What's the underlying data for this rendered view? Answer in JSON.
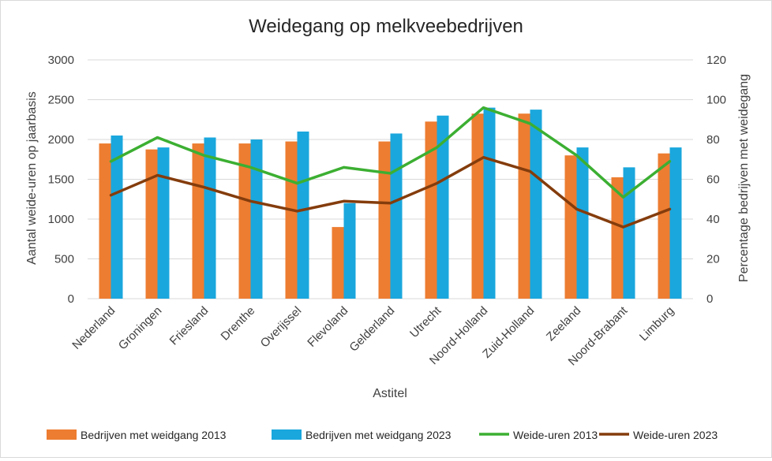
{
  "chart_data": {
    "type": "bar",
    "title": "Weidegang op melkveebedrijven",
    "xlabel": "Astitel",
    "ylabel": "Aantal weide-uren op jaarbasis",
    "y2label": "Percentage bedrijven met weidegang",
    "ylim": [
      0,
      3000
    ],
    "y2lim": [
      0,
      120
    ],
    "yticks": [
      "0",
      "500",
      "1000",
      "1500",
      "2000",
      "2500",
      "3000"
    ],
    "y2ticks": [
      "0",
      "20",
      "40",
      "60",
      "80",
      "100",
      "120"
    ],
    "grid": true,
    "legend_position": "bottom",
    "categories": [
      "Nederland",
      "Groningen",
      "Friesland",
      "Drenthe",
      "Overijssel",
      "Flevoland",
      "Gelderland",
      "Utrecht",
      "Noord-Holland",
      "Zuid-Holland",
      "Zeeland",
      "Noord-Brabant",
      "Limburg"
    ],
    "series": [
      {
        "name": "Bedrijven met weidgang  2013",
        "type": "bar",
        "axis": "left",
        "color": "#ED7D31",
        "values": [
          1950,
          1875,
          1950,
          1950,
          1975,
          900,
          1975,
          2225,
          2325,
          2325,
          1800,
          1525,
          1825
        ]
      },
      {
        "name": "Bedrijven met weidgang  2023",
        "type": "bar",
        "axis": "left",
        "color": "#1AA7DD",
        "values": [
          2050,
          1900,
          2025,
          2000,
          2100,
          1200,
          2075,
          2300,
          2400,
          2375,
          1900,
          1650,
          1900
        ]
      },
      {
        "name": "Weide-uren 2013",
        "type": "line",
        "axis": "right",
        "color": "#3CAF32",
        "values": [
          69,
          81,
          72,
          66,
          58,
          66,
          63,
          76,
          96,
          88,
          72,
          51,
          69
        ]
      },
      {
        "name": "Weide-uren 2023",
        "type": "line",
        "axis": "right",
        "color": "#843C0C",
        "values": [
          52,
          62,
          56,
          49,
          44,
          49,
          48,
          58,
          71,
          64,
          45,
          36,
          45
        ]
      }
    ]
  }
}
